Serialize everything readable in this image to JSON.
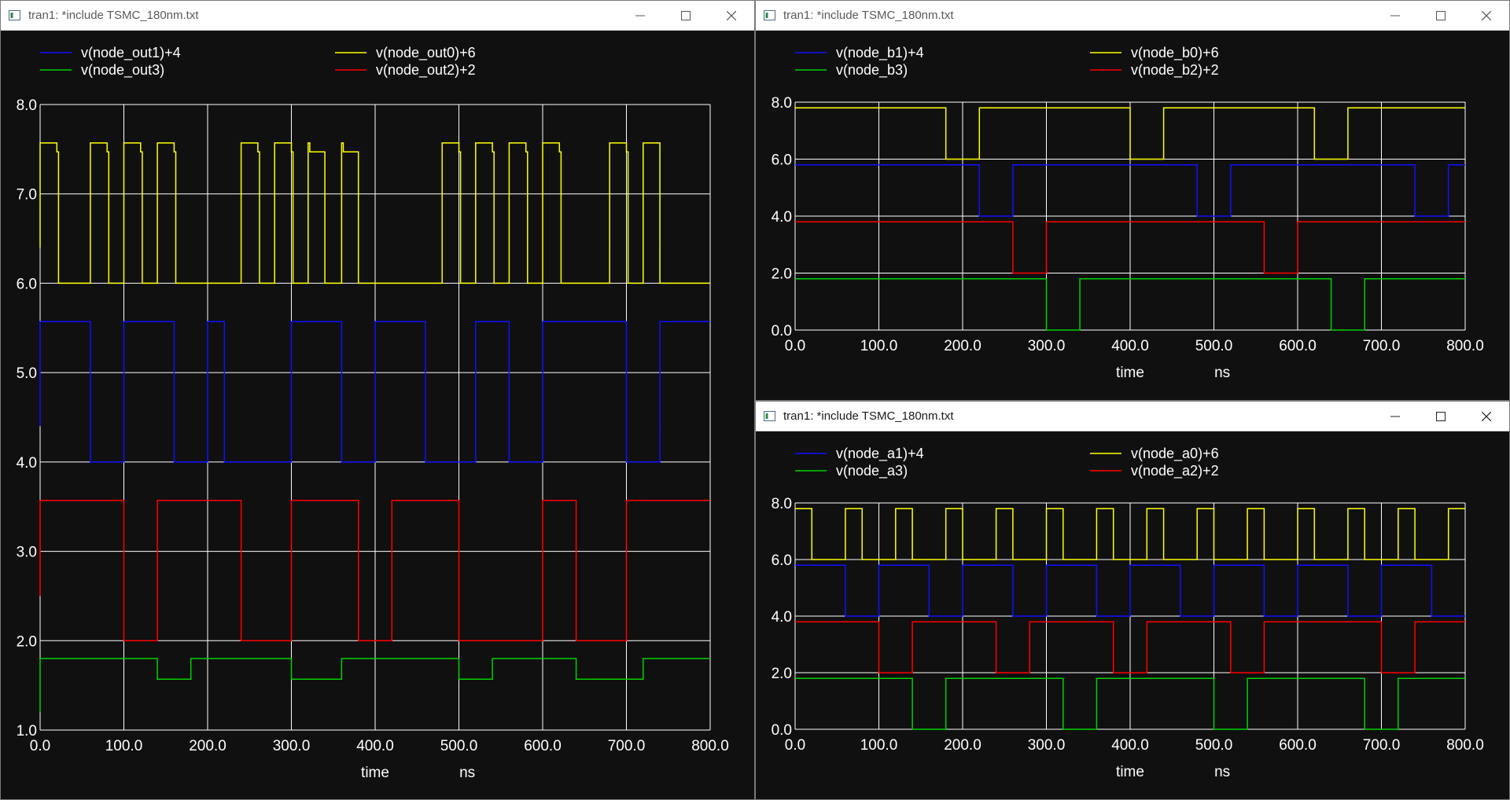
{
  "colors": {
    "background": "#101010",
    "grid": "#ffffff",
    "blue": "#1010ff",
    "yellow": "#ffff00",
    "green": "#00d000",
    "red": "#ff0000"
  },
  "windows": [
    {
      "id": "left",
      "title": "tran1: *include TSMC_180nm.txt",
      "active": false,
      "legend": [
        {
          "label": "v(node_out1)+4",
          "color": "blue"
        },
        {
          "label": "v(node_out0)+6",
          "color": "yellow"
        },
        {
          "label": "v(node_out3)",
          "color": "green"
        },
        {
          "label": "v(node_out2)+2",
          "color": "red"
        }
      ],
      "chart_data": {
        "type": "line",
        "xlabel": "time",
        "xunit": "ns",
        "xlim": [
          0,
          800
        ],
        "ylim": [
          1,
          8
        ],
        "xticks": [
          "0.0",
          "100.0",
          "200.0",
          "300.0",
          "400.0",
          "500.0",
          "600.0",
          "700.0",
          "800.0"
        ],
        "yticks": [
          "1.0",
          "2.0",
          "3.0",
          "4.0",
          "5.0",
          "6.0",
          "7.0",
          "8.0"
        ],
        "grid": true,
        "legend_position": "top",
        "series": [
          {
            "name": "v(node_out0)+6",
            "color": "yellow",
            "x": [
              0,
              0,
              20,
              20,
              22,
              22,
              60,
              60,
              80,
              80,
              82,
              82,
              100,
              100,
              120,
              120,
              122,
              122,
              140,
              140,
              160,
              160,
              162,
              162,
              180,
              180,
              240,
              240,
              260,
              260,
              262,
              262,
              280,
              280,
              300,
              300,
              302,
              302,
              320,
              320,
              322,
              322,
              340,
              340,
              360,
              360,
              362,
              362,
              380,
              380,
              480,
              480,
              500,
              500,
              502,
              502,
              520,
              520,
              540,
              540,
              542,
              542,
              560,
              560,
              580,
              580,
              582,
              582,
              600,
              600,
              620,
              620,
              622,
              622,
              640,
              640,
              680,
              680,
              700,
              700,
              702,
              702,
              720,
              720,
              740,
              740,
              800
            ],
            "y": [
              6.4,
              7.57,
              7.57,
              7.47,
              7.47,
              6.0,
              6.0,
              7.57,
              7.57,
              7.47,
              7.47,
              6.0,
              6.0,
              7.57,
              7.57,
              7.47,
              7.47,
              6.0,
              6.0,
              7.57,
              7.57,
              7.47,
              7.47,
              6.0,
              6.0,
              6.0,
              6.0,
              7.57,
              7.57,
              7.47,
              7.47,
              6.0,
              6.0,
              7.57,
              7.57,
              7.47,
              7.47,
              6.0,
              6.0,
              7.57,
              7.57,
              7.47,
              7.47,
              6.0,
              6.0,
              7.57,
              7.57,
              7.47,
              7.47,
              6.0,
              6.0,
              7.57,
              7.57,
              7.47,
              7.47,
              6.0,
              6.0,
              7.57,
              7.57,
              7.47,
              7.47,
              6.0,
              6.0,
              7.57,
              7.57,
              7.47,
              7.47,
              6.0,
              6.0,
              7.57,
              7.57,
              7.47,
              7.47,
              6.0,
              6.0,
              6.0,
              6.0,
              7.57,
              7.57,
              7.47,
              7.47,
              6.0,
              6.0,
              7.57,
              7.57,
              6.0,
              6.0
            ]
          },
          {
            "name": "v(node_out1)+4",
            "color": "blue",
            "x": [
              0,
              0,
              60,
              60,
              100,
              100,
              160,
              160,
              200,
              200,
              220,
              220,
              300,
              300,
              360,
              360,
              400,
              400,
              460,
              460,
              520,
              520,
              560,
              560,
              600,
              600,
              700,
              700,
              740,
              740,
              800
            ],
            "y": [
              4.4,
              5.57,
              5.57,
              4.0,
              4.0,
              5.57,
              5.57,
              4.0,
              4.0,
              5.57,
              5.57,
              4.0,
              4.0,
              5.57,
              5.57,
              4.0,
              4.0,
              5.57,
              5.57,
              4.0,
              4.0,
              5.57,
              5.57,
              4.0,
              4.0,
              5.57,
              5.57,
              4.0,
              4.0,
              5.57,
              5.57
            ]
          },
          {
            "name": "v(node_out2)+2",
            "color": "red",
            "x": [
              0,
              0,
              100,
              100,
              140,
              140,
              240,
              240,
              300,
              300,
              380,
              380,
              420,
              420,
              500,
              500,
              600,
              600,
              640,
              640,
              700,
              700,
              740,
              740,
              800
            ],
            "y": [
              2.5,
              3.57,
              3.57,
              2.0,
              2.0,
              3.57,
              3.57,
              2.0,
              2.0,
              3.57,
              3.57,
              2.0,
              2.0,
              3.57,
              3.57,
              2.0,
              2.0,
              3.57,
              3.57,
              2.0,
              2.0,
              3.57,
              3.57,
              3.57,
              3.57
            ]
          },
          {
            "name": "v(node_out3)",
            "color": "green",
            "x": [
              0,
              0,
              140,
              140,
              180,
              180,
              300,
              300,
              360,
              360,
              500,
              500,
              540,
              540,
              640,
              640,
              720,
              720,
              800
            ],
            "y": [
              1.2,
              1.8,
              1.8,
              1.57,
              1.57,
              1.8,
              1.8,
              1.57,
              1.57,
              1.8,
              1.8,
              1.57,
              1.57,
              1.8,
              1.8,
              1.57,
              1.57,
              1.8,
              1.8
            ]
          }
        ]
      }
    },
    {
      "id": "top-right",
      "title": "tran1: *include TSMC_180nm.txt",
      "active": false,
      "legend": [
        {
          "label": "v(node_b1)+4",
          "color": "blue"
        },
        {
          "label": "v(node_b0)+6",
          "color": "yellow"
        },
        {
          "label": "v(node_b3)",
          "color": "green"
        },
        {
          "label": "v(node_b2)+2",
          "color": "red"
        }
      ],
      "chart_data": {
        "type": "line",
        "xlabel": "time",
        "xunit": "ns",
        "xlim": [
          0,
          800
        ],
        "ylim": [
          0,
          8
        ],
        "xticks": [
          "0.0",
          "100.0",
          "200.0",
          "300.0",
          "400.0",
          "500.0",
          "600.0",
          "700.0",
          "800.0"
        ],
        "yticks": [
          "0.0",
          "2.0",
          "4.0",
          "6.0",
          "8.0"
        ],
        "grid": true,
        "legend_position": "top",
        "series": [
          {
            "name": "v(node_b0)+6",
            "color": "yellow",
            "x": [
              0,
              180,
              180,
              220,
              220,
              400,
              400,
              440,
              440,
              620,
              620,
              660,
              660,
              800
            ],
            "y": [
              7.8,
              7.8,
              6.0,
              6.0,
              7.8,
              7.8,
              6.0,
              6.0,
              7.8,
              7.8,
              6.0,
              6.0,
              7.8,
              7.8
            ]
          },
          {
            "name": "v(node_b1)+4",
            "color": "blue",
            "x": [
              0,
              220,
              220,
              260,
              260,
              480,
              480,
              520,
              520,
              740,
              740,
              780,
              780,
              800
            ],
            "y": [
              5.8,
              5.8,
              4.0,
              4.0,
              5.8,
              5.8,
              4.0,
              4.0,
              5.8,
              5.8,
              4.0,
              4.0,
              5.8,
              5.8
            ]
          },
          {
            "name": "v(node_b2)+2",
            "color": "red",
            "x": [
              0,
              260,
              260,
              300,
              300,
              560,
              560,
              600,
              600,
              800
            ],
            "y": [
              3.8,
              3.8,
              2.0,
              2.0,
              3.8,
              3.8,
              2.0,
              2.0,
              3.8,
              3.8
            ]
          },
          {
            "name": "v(node_b3)",
            "color": "green",
            "x": [
              0,
              300,
              300,
              340,
              340,
              640,
              640,
              680,
              680,
              800
            ],
            "y": [
              1.8,
              1.8,
              0.0,
              0.0,
              1.8,
              1.8,
              0.0,
              0.0,
              1.8,
              1.8
            ]
          }
        ]
      }
    },
    {
      "id": "bottom-right",
      "title": "tran1: *include TSMC_180nm.txt",
      "active": true,
      "legend": [
        {
          "label": "v(node_a1)+4",
          "color": "blue"
        },
        {
          "label": "v(node_a0)+6",
          "color": "yellow"
        },
        {
          "label": "v(node_a3)",
          "color": "green"
        },
        {
          "label": "v(node_a2)+2",
          "color": "red"
        }
      ],
      "chart_data": {
        "type": "line",
        "xlabel": "time",
        "xunit": "ns",
        "xlim": [
          0,
          800
        ],
        "ylim": [
          0,
          8
        ],
        "xticks": [
          "0.0",
          "100.0",
          "200.0",
          "300.0",
          "400.0",
          "500.0",
          "600.0",
          "700.0",
          "800.0"
        ],
        "yticks": [
          "0.0",
          "2.0",
          "4.0",
          "6.0",
          "8.0"
        ],
        "grid": true,
        "legend_position": "top",
        "series": [
          {
            "name": "v(node_a0)+6",
            "color": "yellow",
            "x": [
              0,
              20,
              20,
              60,
              60,
              80,
              80,
              120,
              120,
              140,
              140,
              180,
              180,
              200,
              200,
              240,
              240,
              260,
              260,
              300,
              300,
              320,
              320,
              360,
              360,
              380,
              380,
              420,
              420,
              440,
              440,
              480,
              480,
              500,
              500,
              540,
              540,
              560,
              560,
              600,
              600,
              620,
              620,
              660,
              660,
              680,
              680,
              720,
              720,
              740,
              740,
              780,
              780,
              800
            ],
            "y": [
              7.8,
              7.8,
              6.0,
              6.0,
              7.8,
              7.8,
              6.0,
              6.0,
              7.8,
              7.8,
              6.0,
              6.0,
              7.8,
              7.8,
              6.0,
              6.0,
              7.8,
              7.8,
              6.0,
              6.0,
              7.8,
              7.8,
              6.0,
              6.0,
              7.8,
              7.8,
              6.0,
              6.0,
              7.8,
              7.8,
              6.0,
              6.0,
              7.8,
              7.8,
              6.0,
              6.0,
              7.8,
              7.8,
              6.0,
              6.0,
              7.8,
              7.8,
              6.0,
              6.0,
              7.8,
              7.8,
              6.0,
              6.0,
              7.8,
              7.8,
              6.0,
              6.0,
              7.8,
              7.8
            ]
          },
          {
            "name": "v(node_a1)+4",
            "color": "blue",
            "x": [
              0,
              60,
              60,
              100,
              100,
              160,
              160,
              200,
              200,
              260,
              260,
              300,
              300,
              360,
              360,
              400,
              400,
              460,
              460,
              500,
              500,
              560,
              560,
              600,
              600,
              660,
              660,
              700,
              700,
              760,
              760,
              800
            ],
            "y": [
              5.8,
              5.8,
              4.0,
              4.0,
              5.8,
              5.8,
              4.0,
              4.0,
              5.8,
              5.8,
              4.0,
              4.0,
              5.8,
              5.8,
              4.0,
              4.0,
              5.8,
              5.8,
              4.0,
              4.0,
              5.8,
              5.8,
              4.0,
              4.0,
              5.8,
              5.8,
              4.0,
              4.0,
              5.8,
              5.8,
              4.0,
              4.0
            ]
          },
          {
            "name": "v(node_a2)+2",
            "color": "red",
            "x": [
              0,
              100,
              100,
              140,
              140,
              240,
              240,
              280,
              280,
              380,
              380,
              420,
              420,
              520,
              520,
              560,
              560,
              700,
              700,
              740,
              740,
              800
            ],
            "y": [
              3.8,
              3.8,
              2.0,
              2.0,
              3.8,
              3.8,
              2.0,
              2.0,
              3.8,
              3.8,
              2.0,
              2.0,
              3.8,
              3.8,
              2.0,
              2.0,
              3.8,
              3.8,
              2.0,
              2.0,
              3.8,
              3.8
            ]
          },
          {
            "name": "v(node_a3)",
            "color": "green",
            "x": [
              0,
              140,
              140,
              180,
              180,
              320,
              320,
              360,
              360,
              500,
              500,
              540,
              540,
              680,
              680,
              720,
              720,
              800
            ],
            "y": [
              1.8,
              1.8,
              0.0,
              0.0,
              1.8,
              1.8,
              0.0,
              0.0,
              1.8,
              1.8,
              0.0,
              0.0,
              1.8,
              1.8,
              0.0,
              0.0,
              1.8,
              1.8
            ]
          }
        ]
      }
    }
  ]
}
